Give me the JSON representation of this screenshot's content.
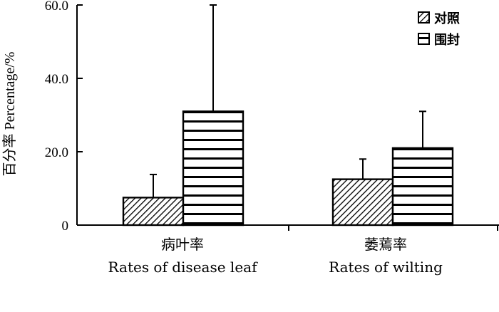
{
  "chart_data": {
    "type": "bar",
    "ylabel": "百分率 Percentage/%",
    "ylim": [
      0,
      60
    ],
    "yticks": [
      "0",
      "20.0",
      "40.0",
      "60.0"
    ],
    "categories": [
      {
        "zh": "病叶率",
        "en": "Rates of disease leaf"
      },
      {
        "zh": "萎蔫率",
        "en": "Rates of wilting"
      }
    ],
    "series": [
      {
        "name": "对照",
        "pattern": "diagonal-hatch",
        "values": [
          7.5,
          12.5
        ],
        "errors": [
          6.3,
          5.5
        ]
      },
      {
        "name": "围封",
        "pattern": "horizontal-stripes",
        "values": [
          31.0,
          21.0
        ],
        "errors": [
          29.0,
          10.0
        ]
      }
    ],
    "legend_position": "top-right",
    "grid": false
  }
}
